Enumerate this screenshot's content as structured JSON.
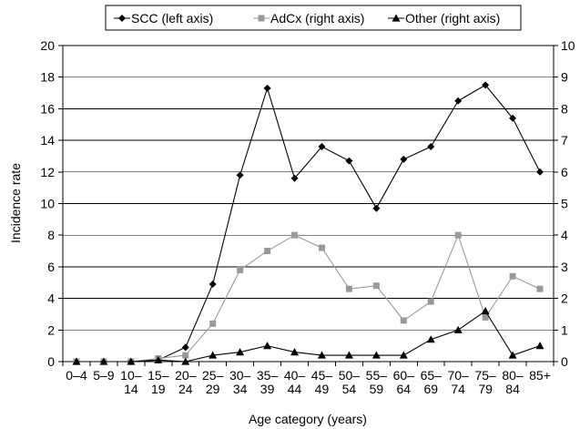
{
  "chart_data": {
    "type": "line",
    "title": "",
    "xlabel": "Age category (years)",
    "ylabel": "Incidence rate",
    "y2label": "",
    "categories": [
      [
        "0–4"
      ],
      [
        "5–9"
      ],
      [
        "10–",
        "14"
      ],
      [
        "15–",
        "19"
      ],
      [
        "20–",
        "24"
      ],
      [
        "25–",
        "29"
      ],
      [
        "30–",
        "34"
      ],
      [
        "35–",
        "39"
      ],
      [
        "40–",
        "44"
      ],
      [
        "45–",
        "49"
      ],
      [
        "50–",
        "54"
      ],
      [
        "55–",
        "59"
      ],
      [
        "60–",
        "64"
      ],
      [
        "65–",
        "69"
      ],
      [
        "70–",
        "74"
      ],
      [
        "75–",
        "79"
      ],
      [
        "80–",
        "84"
      ],
      [
        "85+"
      ]
    ],
    "ylim": [
      0,
      20
    ],
    "y2lim": [
      0,
      10
    ],
    "yticks": [
      0,
      2,
      4,
      6,
      8,
      10,
      12,
      14,
      16,
      18,
      20
    ],
    "y2ticks": [
      0,
      1,
      2,
      3,
      4,
      5,
      6,
      7,
      8,
      9,
      10
    ],
    "grid": "horizontal",
    "legend_position": "top",
    "series": [
      {
        "name": "SCC (left axis)",
        "axis": "left",
        "color": "#000000",
        "marker": "diamond",
        "values": [
          0,
          0,
          0,
          0.1,
          0.9,
          4.9,
          11.8,
          17.3,
          11.6,
          13.6,
          12.7,
          9.7,
          12.8,
          13.6,
          16.5,
          17.5,
          15.4,
          12.0
        ]
      },
      {
        "name": "AdCx (right axis)",
        "axis": "right",
        "color": "#999999",
        "marker": "square",
        "values": [
          0,
          0,
          0,
          0.1,
          0.2,
          1.2,
          2.9,
          3.5,
          4.0,
          3.6,
          2.3,
          2.4,
          1.3,
          1.9,
          4.0,
          1.4,
          2.7,
          2.3
        ]
      },
      {
        "name": "Other (right axis)",
        "axis": "right",
        "color": "#000000",
        "marker": "triangle",
        "values": [
          0,
          0,
          0,
          0.05,
          0,
          0.2,
          0.3,
          0.5,
          0.3,
          0.2,
          0.2,
          0.2,
          0.2,
          0.7,
          1.0,
          1.6,
          0.2,
          0.5
        ]
      }
    ]
  }
}
